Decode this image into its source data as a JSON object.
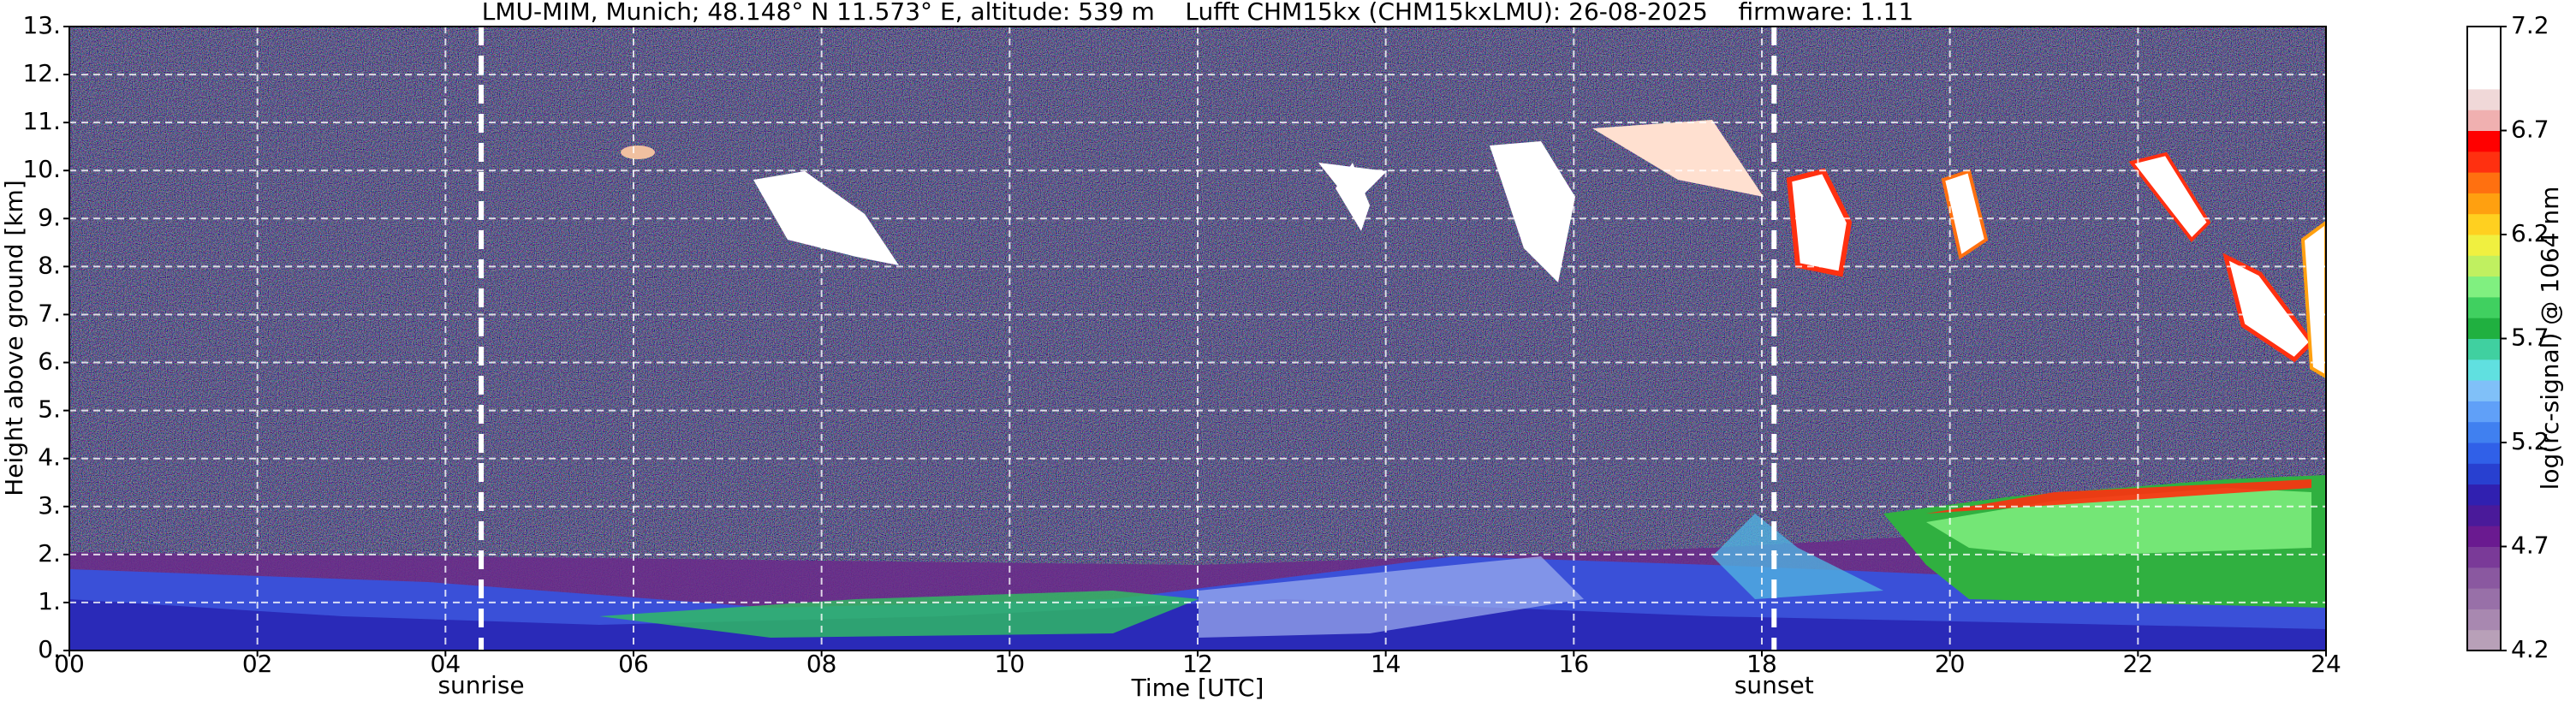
{
  "chart_data": {
    "type": "heatmap",
    "title": "LMU-MIM, Munich; 48.148° N 11.573° E, altitude: 539 m    Lufft CHM15kx (CHM15kxLMU): 26-08-2025    firmware: 1.11",
    "x_label": "Time [UTC]",
    "y_label": "Height above ground [km]",
    "xlim": [
      0,
      24
    ],
    "xticks": [
      {
        "value": 0,
        "label": "00"
      },
      {
        "value": 2,
        "label": "02"
      },
      {
        "value": 4,
        "label": "04"
      },
      {
        "value": 6,
        "label": "06"
      },
      {
        "value": 8,
        "label": "08"
      },
      10,
      12,
      14,
      16,
      18,
      20,
      22,
      24
    ],
    "ylim": [
      0,
      13
    ],
    "yticks": [
      {
        "value": 0,
        "label": "0."
      },
      {
        "value": 1,
        "label": "1."
      },
      {
        "value": 2,
        "label": "2."
      },
      {
        "value": 3,
        "label": "3."
      },
      {
        "value": 4,
        "label": "4."
      },
      {
        "value": 5,
        "label": "5."
      },
      {
        "value": 6,
        "label": "6."
      },
      {
        "value": 7,
        "label": "7."
      },
      {
        "value": 8,
        "label": "8."
      },
      {
        "value": 9,
        "label": "9."
      },
      {
        "value": 10,
        "label": "10."
      },
      {
        "value": 11,
        "label": "11."
      },
      {
        "value": 12,
        "label": "12."
      },
      {
        "value": 13,
        "label": "13."
      }
    ],
    "grid": true,
    "annotations": [
      {
        "text": "sunrise",
        "x": 4.38
      },
      {
        "text": "sunset",
        "x": 18.13
      }
    ],
    "colorbar": {
      "label": "log(rc-signal) @ 1064 nm",
      "lim": [
        4.2,
        7.2
      ],
      "ticks": [
        4.2,
        4.7,
        5.2,
        5.7,
        6.2,
        6.7,
        7.2
      ],
      "colors": [
        "#b8a0b8",
        "#a888b0",
        "#9870a8",
        "#8a58a0",
        "#7a3a98",
        "#6a1a90",
        "#4a1a9a",
        "#3020b0",
        "#2840d0",
        "#3060e8",
        "#4080f0",
        "#60a0f8",
        "#80c0f8",
        "#60e0e0",
        "#40d0a0",
        "#20b040",
        "#40d060",
        "#80f080",
        "#c0f060",
        "#f0f040",
        "#ffd020",
        "#ffa010",
        "#ff7010",
        "#ff3010",
        "#ff0000",
        "#f0b0b0",
        "#f0d8d8",
        "#ffffff",
        "#ffffff",
        "#ffffff"
      ]
    }
  }
}
